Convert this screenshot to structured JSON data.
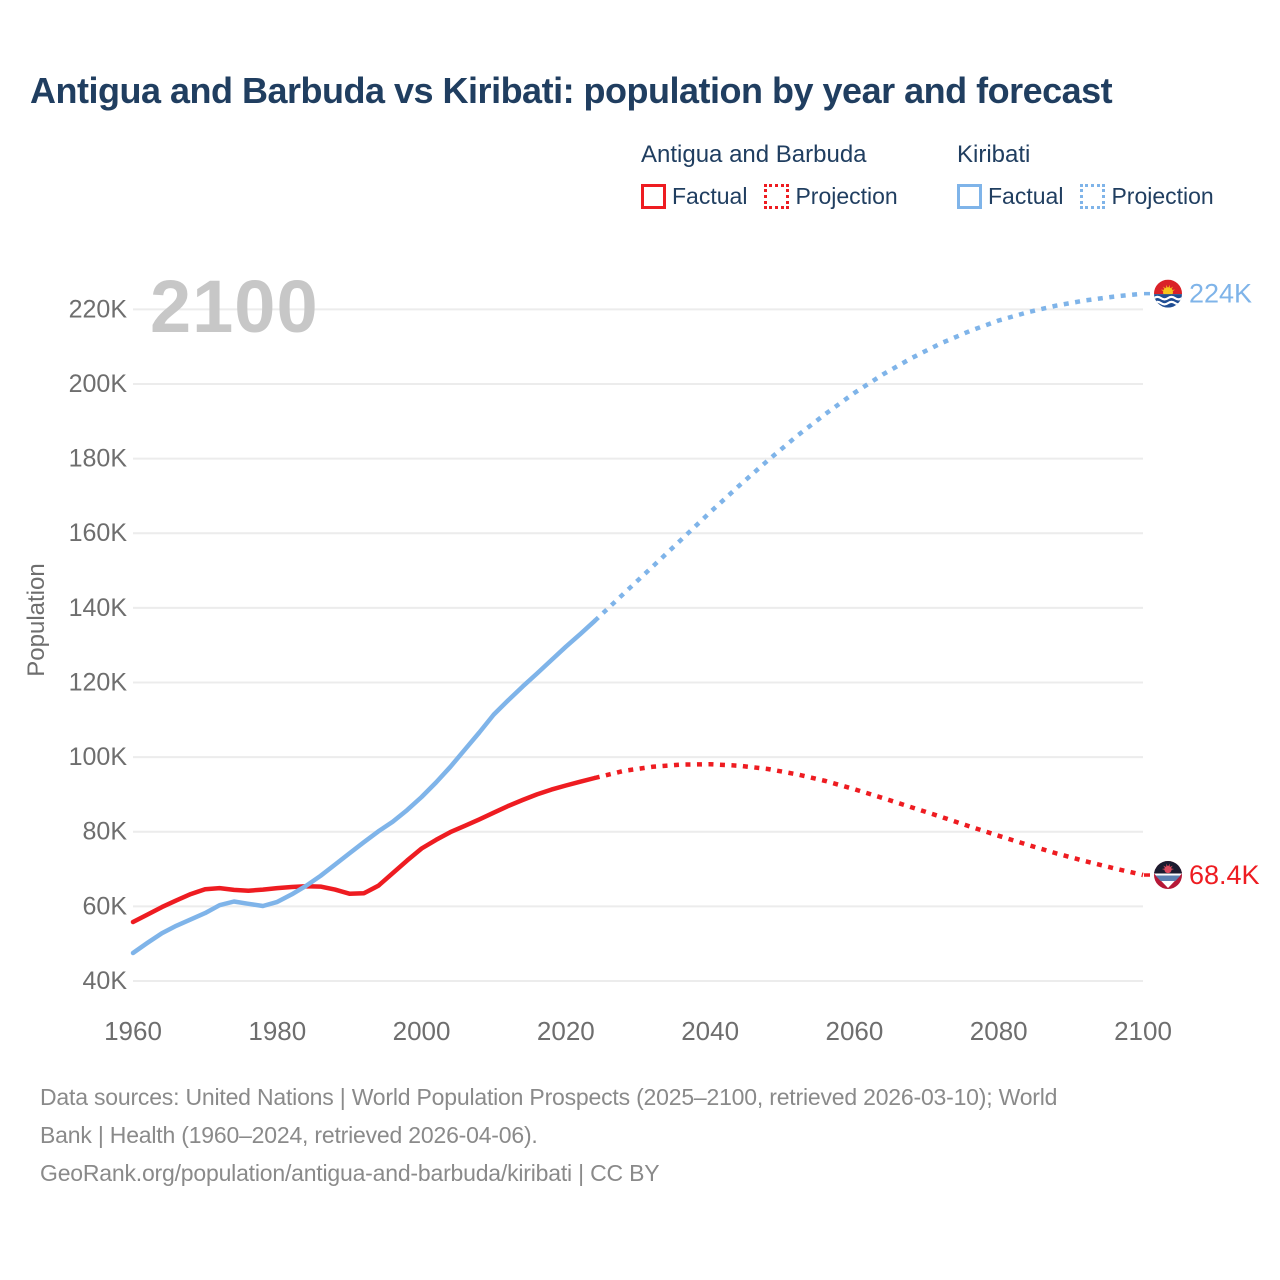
{
  "header": {
    "title": "Antigua and Barbuda vs Kiribati: population by year and forecast"
  },
  "legend": {
    "groups": [
      {
        "name": "Antigua and Barbuda",
        "color": "#ee1c21",
        "items": [
          {
            "label": "Factual",
            "style": "solid"
          },
          {
            "label": "Projection",
            "style": "dotted"
          }
        ]
      },
      {
        "name": "Kiribati",
        "color": "#7fb4e9",
        "items": [
          {
            "label": "Factual",
            "style": "solid"
          },
          {
            "label": "Projection",
            "style": "dotted"
          }
        ]
      }
    ]
  },
  "watermark": "2100",
  "colors": {
    "antigua": "#ee1c21",
    "kiribati": "#7fb4e9",
    "title_text": "#203e60",
    "axis_text": "#6e6e6e",
    "footer_text": "#8a8a8a",
    "watermark": "#c7c7c7",
    "gridline": "#ececec"
  },
  "footer": {
    "lines": [
      "Data sources: United Nations | World Population Prospects (2025–2100, retrieved 2026-03-10); World",
      "Bank | Health (1960–2024, retrieved 2026-04-06).",
      "GeoRank.org/population/antigua-and-barbuda/kiribati | CC BY"
    ]
  },
  "chart_data": {
    "type": "line",
    "title": "Antigua and Barbuda vs Kiribati: population by year and forecast",
    "xlabel": "",
    "ylabel": "Population",
    "units": "thousands of people",
    "grid": "horizontal",
    "legend_position": "top-right",
    "xlim": [
      1960,
      2100
    ],
    "ylim_thousands": [
      40,
      230
    ],
    "xticks": [
      1960,
      1980,
      2000,
      2020,
      2040,
      2060,
      2080,
      2100
    ],
    "yticks": [
      {
        "value": 40,
        "label": "40K"
      },
      {
        "value": 60,
        "label": "60K"
      },
      {
        "value": 80,
        "label": "80K"
      },
      {
        "value": 100,
        "label": "100K"
      },
      {
        "value": 120,
        "label": "120K"
      },
      {
        "value": 140,
        "label": "140K"
      },
      {
        "value": 160,
        "label": "160K"
      },
      {
        "value": 180,
        "label": "180K"
      },
      {
        "value": 200,
        "label": "200K"
      },
      {
        "value": 220,
        "label": "220K"
      }
    ],
    "series": [
      {
        "name": "Antigua and Barbuda — Factual",
        "color": "#ee1c21",
        "style": "solid",
        "points": [
          [
            1960,
            55.8
          ],
          [
            1962,
            57.8
          ],
          [
            1964,
            59.8
          ],
          [
            1966,
            61.6
          ],
          [
            1968,
            63.3
          ],
          [
            1970,
            64.6
          ],
          [
            1972,
            64.9
          ],
          [
            1974,
            64.4
          ],
          [
            1976,
            64.2
          ],
          [
            1978,
            64.5
          ],
          [
            1980,
            64.9
          ],
          [
            1982,
            65.2
          ],
          [
            1984,
            65.4
          ],
          [
            1986,
            65.3
          ],
          [
            1988,
            64.5
          ],
          [
            1990,
            63.4
          ],
          [
            1992,
            63.5
          ],
          [
            1994,
            65.5
          ],
          [
            1996,
            68.9
          ],
          [
            1998,
            72.3
          ],
          [
            2000,
            75.5
          ],
          [
            2002,
            77.8
          ],
          [
            2004,
            79.9
          ],
          [
            2006,
            81.6
          ],
          [
            2008,
            83.3
          ],
          [
            2010,
            85.1
          ],
          [
            2012,
            86.9
          ],
          [
            2014,
            88.5
          ],
          [
            2016,
            90.0
          ],
          [
            2018,
            91.3
          ],
          [
            2020,
            92.4
          ],
          [
            2022,
            93.4
          ],
          [
            2024,
            94.4
          ]
        ]
      },
      {
        "name": "Antigua and Barbuda — Projection",
        "color": "#ee1c21",
        "style": "dotted",
        "points": [
          [
            2024,
            94.4
          ],
          [
            2028,
            96.3
          ],
          [
            2032,
            97.4
          ],
          [
            2036,
            98.0
          ],
          [
            2040,
            98.1
          ],
          [
            2044,
            97.7
          ],
          [
            2048,
            96.8
          ],
          [
            2052,
            95.4
          ],
          [
            2056,
            93.6
          ],
          [
            2060,
            91.4
          ],
          [
            2064,
            89.0
          ],
          [
            2068,
            86.5
          ],
          [
            2072,
            84.0
          ],
          [
            2076,
            81.4
          ],
          [
            2080,
            78.9
          ],
          [
            2084,
            76.5
          ],
          [
            2088,
            74.2
          ],
          [
            2092,
            72.1
          ],
          [
            2096,
            70.2
          ],
          [
            2100,
            68.4
          ]
        ]
      },
      {
        "name": "Kiribati — Factual",
        "color": "#7fb4e9",
        "style": "solid",
        "points": [
          [
            1960,
            47.5
          ],
          [
            1962,
            50.2
          ],
          [
            1964,
            52.8
          ],
          [
            1966,
            54.8
          ],
          [
            1968,
            56.5
          ],
          [
            1970,
            58.2
          ],
          [
            1972,
            60.3
          ],
          [
            1974,
            61.3
          ],
          [
            1976,
            60.7
          ],
          [
            1978,
            60.1
          ],
          [
            1980,
            61.2
          ],
          [
            1982,
            63.2
          ],
          [
            1984,
            65.5
          ],
          [
            1986,
            68.2
          ],
          [
            1988,
            71.2
          ],
          [
            1990,
            74.2
          ],
          [
            1992,
            77.2
          ],
          [
            1994,
            80.1
          ],
          [
            1996,
            82.7
          ],
          [
            1998,
            85.8
          ],
          [
            2000,
            89.3
          ],
          [
            2002,
            93.2
          ],
          [
            2004,
            97.4
          ],
          [
            2006,
            102.0
          ],
          [
            2008,
            106.6
          ],
          [
            2010,
            111.4
          ],
          [
            2012,
            115.2
          ],
          [
            2014,
            118.9
          ],
          [
            2016,
            122.4
          ],
          [
            2018,
            126.0
          ],
          [
            2020,
            129.6
          ],
          [
            2022,
            133.0
          ],
          [
            2024,
            136.5
          ]
        ]
      },
      {
        "name": "Kiribati — Projection",
        "color": "#7fb4e9",
        "style": "dotted",
        "points": [
          [
            2024,
            136.5
          ],
          [
            2028,
            143.8
          ],
          [
            2032,
            151.0
          ],
          [
            2036,
            158.3
          ],
          [
            2040,
            165.6
          ],
          [
            2044,
            172.7
          ],
          [
            2048,
            179.5
          ],
          [
            2052,
            186.0
          ],
          [
            2056,
            192.0
          ],
          [
            2060,
            197.6
          ],
          [
            2064,
            202.6
          ],
          [
            2068,
            207.0
          ],
          [
            2072,
            210.9
          ],
          [
            2076,
            214.2
          ],
          [
            2080,
            217.0
          ],
          [
            2084,
            219.2
          ],
          [
            2088,
            221.0
          ],
          [
            2092,
            222.4
          ],
          [
            2096,
            223.4
          ],
          [
            2100,
            224.2
          ]
        ]
      }
    ],
    "end_markers": [
      {
        "country": "Kiribati",
        "year": 2100,
        "value_thousands": 224.2,
        "label": "224K",
        "flag": "kiribati",
        "color": "#7fb4e9"
      },
      {
        "country": "Antigua and Barbuda",
        "year": 2100,
        "value_thousands": 68.4,
        "label": "68.4K",
        "flag": "antigua",
        "color": "#ee1c21"
      }
    ]
  }
}
